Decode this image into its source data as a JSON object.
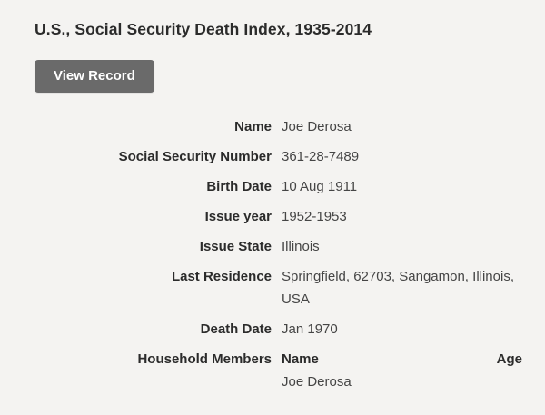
{
  "page": {
    "background_color": "#f4f3f1",
    "accent_button_color": "#6a6a6a"
  },
  "header": {
    "title": "U.S., Social Security Death Index, 1935-2014"
  },
  "actions": {
    "view_record_label": "View Record"
  },
  "record": {
    "fields": [
      {
        "label": "Name",
        "value": "Joe Derosa"
      },
      {
        "label": "Social Security Number",
        "value": "361-28-7489"
      },
      {
        "label": "Birth Date",
        "value": "10 Aug 1911"
      },
      {
        "label": "Issue year",
        "value": "1952-1953"
      },
      {
        "label": "Issue State",
        "value": "Illinois"
      },
      {
        "label": "Last Residence",
        "value": "Springfield, 62703, Sangamon, Illinois, USA"
      },
      {
        "label": "Death Date",
        "value": "Jan 1970"
      }
    ],
    "household": {
      "label": "Household Members",
      "columns": {
        "name": "Name",
        "age": "Age"
      },
      "members": [
        {
          "name": "Joe Derosa"
        }
      ]
    }
  }
}
